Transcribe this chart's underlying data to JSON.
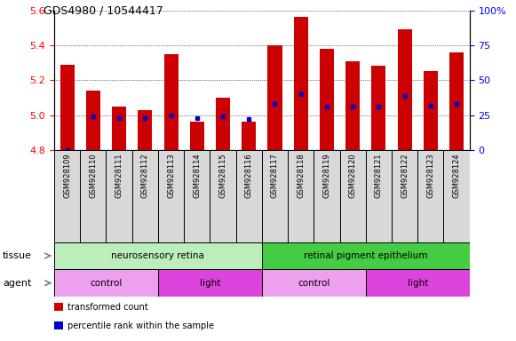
{
  "title": "GDS4980 / 10544417",
  "samples": [
    "GSM928109",
    "GSM928110",
    "GSM928111",
    "GSM928112",
    "GSM928113",
    "GSM928114",
    "GSM928115",
    "GSM928116",
    "GSM928117",
    "GSM928118",
    "GSM928119",
    "GSM928120",
    "GSM928121",
    "GSM928122",
    "GSM928123",
    "GSM928124"
  ],
  "transformed_count": [
    5.29,
    5.14,
    5.05,
    5.03,
    5.35,
    4.96,
    5.1,
    4.96,
    5.4,
    5.56,
    5.38,
    5.31,
    5.28,
    5.49,
    5.25,
    5.36
  ],
  "percentile_rank": [
    0,
    24,
    23,
    23,
    25,
    23,
    24,
    22,
    33,
    40,
    31,
    31,
    31,
    39,
    32,
    33
  ],
  "ylim_left": [
    4.8,
    5.6
  ],
  "ylim_right": [
    0,
    100
  ],
  "yticks_left": [
    4.8,
    5.0,
    5.2,
    5.4,
    5.6
  ],
  "yticks_right": [
    0,
    25,
    50,
    75,
    100
  ],
  "ytick_labels_right": [
    "0",
    "25",
    "50",
    "75",
    "100%"
  ],
  "bar_color": "#cc0000",
  "dot_color": "#0000cc",
  "tissue_groups": [
    {
      "label": "neurosensory retina",
      "start": 0,
      "end": 8,
      "color": "#bbeebb"
    },
    {
      "label": "retinal pigment epithelium",
      "start": 8,
      "end": 16,
      "color": "#44cc44"
    }
  ],
  "agent_groups": [
    {
      "label": "control",
      "start": 0,
      "end": 4,
      "color": "#eea0ee"
    },
    {
      "label": "light",
      "start": 4,
      "end": 8,
      "color": "#dd44dd"
    },
    {
      "label": "control",
      "start": 8,
      "end": 12,
      "color": "#eea0ee"
    },
    {
      "label": "light",
      "start": 12,
      "end": 16,
      "color": "#dd44dd"
    }
  ],
  "tissue_label": "tissue",
  "agent_label": "agent",
  "legend_items": [
    {
      "label": "transformed count",
      "color": "#cc0000"
    },
    {
      "label": "percentile rank within the sample",
      "color": "#0000cc"
    }
  ],
  "label_fontsize": 8,
  "tick_fontsize": 8,
  "sample_fontsize": 6,
  "bar_width": 0.55
}
